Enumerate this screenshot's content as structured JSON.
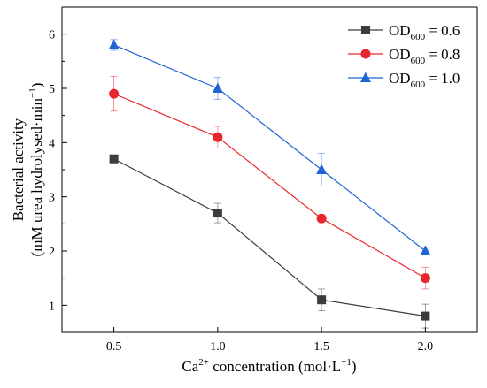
{
  "chart_data": {
    "type": "line",
    "xlabel": {
      "pre": "Ca",
      "sup1": "2+",
      "mid": " concentration (mol·L",
      "sup2": "−1",
      "post": ")"
    },
    "ylabel": {
      "line1": "Bacterial activity",
      "line2": {
        "pre": "(mM urea hydrolysed·min",
        "sup": "−1",
        "post": ")"
      }
    },
    "x": [
      0.5,
      1.0,
      1.5,
      2.0
    ],
    "x_ticks": [
      "0.5",
      "1.0",
      "1.5",
      "2.0"
    ],
    "y_ticks": [
      "1",
      "2",
      "3",
      "4",
      "5",
      "6"
    ],
    "xlim": [
      0.25,
      2.25
    ],
    "ylim": [
      0.5,
      6.5
    ],
    "legend_position": "top-right",
    "series": [
      {
        "name": {
          "base": "OD",
          "sub": "600",
          "rest": " = 0.6"
        },
        "color": "#3c3c3c",
        "marker": "square",
        "values": [
          3.7,
          2.7,
          1.1,
          0.8
        ],
        "errors": [
          0.0,
          0.18,
          0.2,
          0.22
        ]
      },
      {
        "name": {
          "base": "OD",
          "sub": "600",
          "rest": " = 0.8"
        },
        "color": "#e8262d",
        "marker": "circle",
        "values": [
          4.9,
          4.1,
          2.6,
          1.5
        ],
        "errors": [
          0.32,
          0.2,
          0.0,
          0.2
        ]
      },
      {
        "name": {
          "base": "OD",
          "sub": "600",
          "rest": " = 1.0"
        },
        "color": "#1f64d4",
        "marker": "triangle",
        "values": [
          5.8,
          5.0,
          3.5,
          2.0
        ],
        "errors": [
          0.1,
          0.2,
          0.3,
          0.0
        ]
      }
    ]
  }
}
